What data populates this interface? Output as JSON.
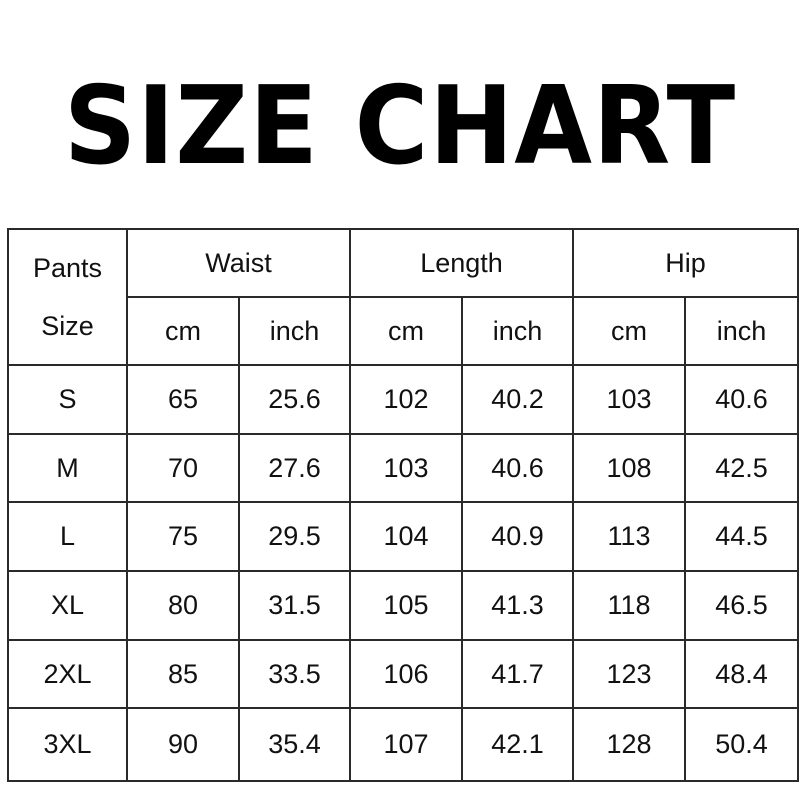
{
  "title": "SIZE CHART",
  "table": {
    "corner_label_line1": "Pants",
    "corner_label_line2": "Size",
    "groups": [
      "Waist",
      "Length",
      "Hip"
    ],
    "units": [
      "cm",
      "inch",
      "cm",
      "inch",
      "cm",
      "inch"
    ],
    "rows": [
      {
        "size": "S",
        "values": [
          "65",
          "25.6",
          "102",
          "40.2",
          "103",
          "40.6"
        ]
      },
      {
        "size": "M",
        "values": [
          "70",
          "27.6",
          "103",
          "40.6",
          "108",
          "42.5"
        ]
      },
      {
        "size": "L",
        "values": [
          "75",
          "29.5",
          "104",
          "40.9",
          "113",
          "44.5"
        ]
      },
      {
        "size": "XL",
        "values": [
          "80",
          "31.5",
          "105",
          "41.3",
          "118",
          "46.5"
        ]
      },
      {
        "size": "2XL",
        "values": [
          "85",
          "33.5",
          "106",
          "41.7",
          "123",
          "48.4"
        ]
      },
      {
        "size": "3XL",
        "values": [
          "90",
          "35.4",
          "107",
          "42.1",
          "128",
          "50.4"
        ]
      }
    ]
  }
}
